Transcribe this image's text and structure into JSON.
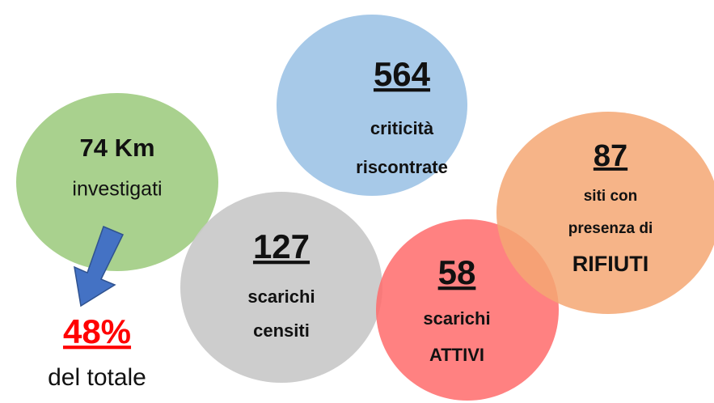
{
  "bubbles": [
    {
      "value": "74 Km",
      "lines": [
        "investigati"
      ]
    },
    {
      "value": "564",
      "lines": [
        "criticità",
        "riscontrate"
      ]
    },
    {
      "value": "127",
      "lines": [
        "scarichi",
        "censiti"
      ]
    },
    {
      "value": "58",
      "lines": [
        "scarichi",
        "ATTIVI"
      ]
    },
    {
      "value": "87",
      "lines": [
        "siti con",
        "presenza di",
        "RIFIUTI"
      ]
    }
  ],
  "callout": {
    "value": "48%",
    "label": "del totale"
  }
}
